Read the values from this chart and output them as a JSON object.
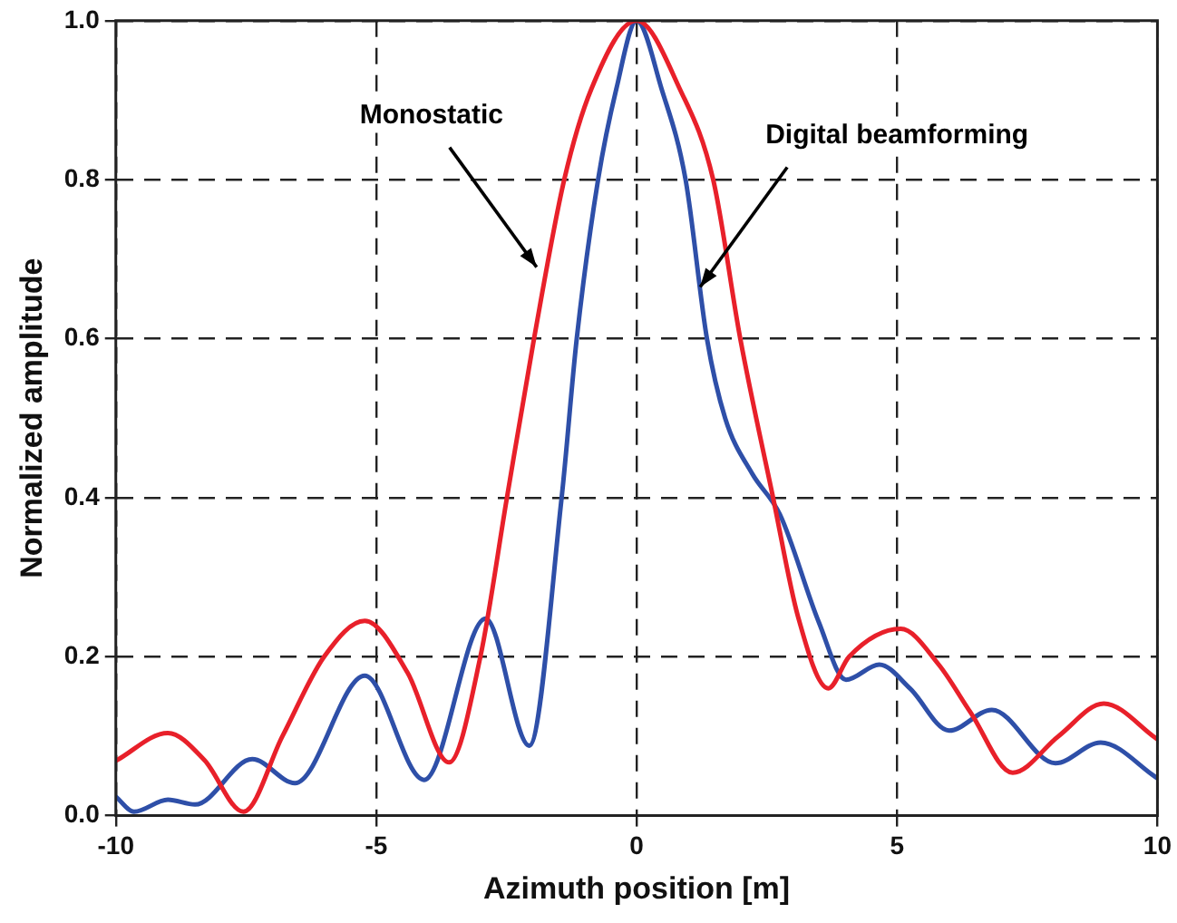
{
  "chart_data": {
    "type": "line",
    "xlabel": "Azimuth position [m]",
    "ylabel": "Normalized amplitude",
    "xlim": [
      -10,
      10
    ],
    "xticks": [
      -10,
      -5,
      0,
      5,
      10
    ],
    "ylim": [
      0,
      1
    ],
    "yticks": [
      {
        "value": 0,
        "label": "0.0"
      },
      {
        "value": 0.2,
        "label": "0.2"
      },
      {
        "value": 0.4,
        "label": "0.4"
      },
      {
        "value": 0.6,
        "label": "0.6"
      },
      {
        "value": 0.8,
        "label": "0.8"
      },
      {
        "value": 1,
        "label": "1.0"
      }
    ],
    "grid": true,
    "legend": false,
    "marker": "none",
    "line_style": "solid",
    "annotations": [
      {
        "text": "Monostatic",
        "x": -1.92,
        "y": 0.69
      },
      {
        "text": "Digital beamforming",
        "x": 1.22,
        "y": 0.665
      }
    ],
    "series": [
      {
        "color": "#e8202a",
        "x": [
          -10,
          -9.0,
          -8.3,
          -7.55,
          -6.8,
          -6.0,
          -5.22,
          -4.4,
          -3.6,
          -3.0,
          -2.49,
          -1.97,
          -1.39,
          -0.87,
          0,
          0.83,
          1.47,
          1.99,
          2.62,
          3.1,
          3.68,
          4.08,
          5.07,
          5.8,
          6.41,
          7.22,
          8.1,
          8.97,
          10
        ],
        "values": [
          0.069,
          0.104,
          0.07,
          0.005,
          0.1,
          0.2,
          0.245,
          0.18,
          0.067,
          0.2,
          0.4,
          0.6,
          0.8,
          0.914,
          1.0,
          0.914,
          0.8,
          0.6,
          0.4,
          0.25,
          0.16,
          0.2,
          0.235,
          0.19,
          0.13,
          0.054,
          0.1,
          0.141,
          0.096
        ]
      },
      {
        "color": "#2e4fa8",
        "x": [
          -10,
          -9.65,
          -9.0,
          -8.48,
          -7.38,
          -6.56,
          -5.22,
          -4.08,
          -2.9,
          -2.06,
          -1.44,
          -1.15,
          -0.74,
          -0.39,
          0,
          0.48,
          0.94,
          1.35,
          1.7,
          2.22,
          2.75,
          3.5,
          4.02,
          4.66,
          5.25,
          6.0,
          6.82,
          8.04,
          8.91,
          10
        ],
        "values": [
          0.024,
          0.005,
          0.02,
          0.014,
          0.071,
          0.041,
          0.176,
          0.045,
          0.248,
          0.088,
          0.4,
          0.6,
          0.8,
          0.914,
          1.0,
          0.914,
          0.8,
          0.6,
          0.5,
          0.43,
          0.379,
          0.243,
          0.171,
          0.19,
          0.16,
          0.107,
          0.133,
          0.066,
          0.092,
          0.047
        ]
      }
    ]
  }
}
